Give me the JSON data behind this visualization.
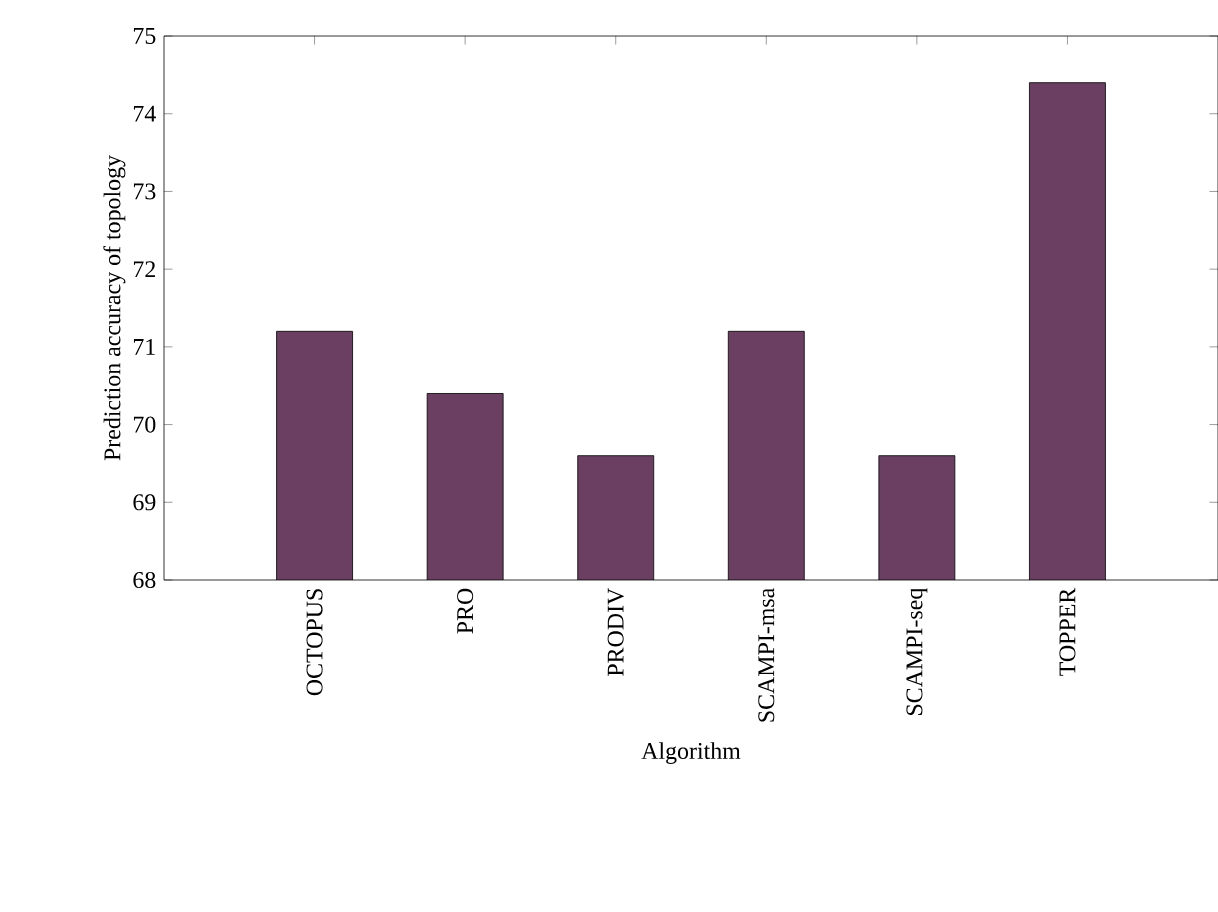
{
  "chart_data": {
    "type": "bar",
    "xlabel": "Algorithm",
    "ylabel": "Prediction accuracy of topology",
    "categories": [
      "OCTOPUS",
      "PRO",
      "PRODIV",
      "SCAMPI-msa",
      "SCAMPI-seq",
      "TOPPER"
    ],
    "values": [
      71.2,
      70.4,
      69.6,
      71.2,
      69.6,
      74.4
    ],
    "color": "#6a3f62",
    "ylim": [
      68,
      75
    ],
    "yticks": [
      68,
      69,
      70,
      71,
      72,
      73,
      74,
      75
    ],
    "grid": false
  }
}
